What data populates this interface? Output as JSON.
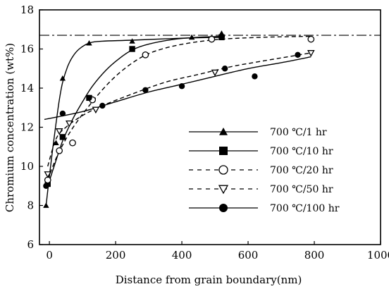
{
  "chart_data": {
    "type": "scatter",
    "xlabel": "Distance  from  grain  boundary(nm)",
    "ylabel": "Chromium  concentration (wt%)",
    "xlim": [
      -30,
      1000
    ],
    "ylim": [
      6,
      18
    ],
    "xticks": [
      "0",
      "200",
      "400",
      "600",
      "800",
      "1000"
    ],
    "yticks": [
      "6",
      "8",
      "10",
      "12",
      "14",
      "16",
      "18"
    ],
    "bulk_level": 16.7,
    "legend_position": "lower-right",
    "grid": false,
    "series": [
      {
        "name": "700 ℃/1 hr",
        "marker": "triangle",
        "line": "solid",
        "points": [
          [
            -10,
            8.0
          ],
          [
            20,
            11.2
          ],
          [
            40,
            14.5
          ],
          [
            120,
            16.3
          ],
          [
            250,
            16.4
          ],
          [
            430,
            16.6
          ],
          [
            520,
            16.8
          ]
        ],
        "curve": [
          [
            -10,
            8.0
          ],
          [
            0,
            9.5
          ],
          [
            10,
            10.9
          ],
          [
            20,
            12.2
          ],
          [
            30,
            13.4
          ],
          [
            40,
            14.3
          ],
          [
            55,
            15.1
          ],
          [
            70,
            15.6
          ],
          [
            90,
            16.0
          ],
          [
            120,
            16.3
          ],
          [
            160,
            16.4
          ],
          [
            250,
            16.45
          ],
          [
            400,
            16.55
          ],
          [
            530,
            16.6
          ]
        ]
      },
      {
        "name": "700 ℃/10 hr",
        "marker": "square",
        "line": "solid",
        "points": [
          [
            -5,
            9.1
          ],
          [
            40,
            11.5
          ],
          [
            120,
            13.5
          ],
          [
            250,
            16.0
          ],
          [
            520,
            16.6
          ]
        ],
        "curve": [
          [
            -5,
            9.0
          ],
          [
            20,
            10.3
          ],
          [
            40,
            11.3
          ],
          [
            70,
            12.4
          ],
          [
            100,
            13.3
          ],
          [
            130,
            14.1
          ],
          [
            170,
            14.9
          ],
          [
            210,
            15.5
          ],
          [
            250,
            15.95
          ],
          [
            300,
            16.25
          ],
          [
            380,
            16.5
          ],
          [
            450,
            16.6
          ],
          [
            530,
            16.65
          ]
        ]
      },
      {
        "name": "700 ℃/20 hr",
        "marker": "circle-open",
        "line": "dashed",
        "points": [
          [
            -5,
            9.3
          ],
          [
            30,
            10.8
          ],
          [
            70,
            11.2
          ],
          [
            130,
            13.4
          ],
          [
            290,
            15.7
          ],
          [
            490,
            16.5
          ],
          [
            790,
            16.5
          ]
        ],
        "curve": [
          [
            -5,
            9.3
          ],
          [
            20,
            10.4
          ],
          [
            50,
            11.4
          ],
          [
            80,
            12.2
          ],
          [
            120,
            13.1
          ],
          [
            170,
            14.1
          ],
          [
            220,
            14.9
          ],
          [
            280,
            15.6
          ],
          [
            340,
            16.0
          ],
          [
            420,
            16.3
          ],
          [
            520,
            16.5
          ],
          [
            650,
            16.6
          ],
          [
            790,
            16.65
          ]
        ]
      },
      {
        "name": "700 ℃/50 hr",
        "marker": "triangle-down-open",
        "line": "dashed",
        "points": [
          [
            -5,
            9.6
          ],
          [
            30,
            11.8
          ],
          [
            60,
            12.2
          ],
          [
            140,
            12.9
          ],
          [
            500,
            14.8
          ],
          [
            790,
            15.8
          ]
        ],
        "curve": [
          [
            -5,
            10.0
          ],
          [
            20,
            11.4
          ],
          [
            50,
            12.0
          ],
          [
            100,
            12.6
          ],
          [
            160,
            13.1
          ],
          [
            250,
            13.7
          ],
          [
            350,
            14.3
          ],
          [
            450,
            14.7
          ],
          [
            550,
            15.1
          ],
          [
            650,
            15.4
          ],
          [
            790,
            15.8
          ]
        ]
      },
      {
        "name": "700 ℃/100 hr",
        "marker": "circle-filled",
        "line": "solid",
        "points": [
          [
            -10,
            9.0
          ],
          [
            40,
            12.7
          ],
          [
            120,
            13.5
          ],
          [
            160,
            13.1
          ],
          [
            290,
            13.9
          ],
          [
            400,
            14.1
          ],
          [
            530,
            15.0
          ],
          [
            620,
            14.6
          ],
          [
            750,
            15.7
          ]
        ],
        "curve": [
          [
            -15,
            12.4
          ],
          [
            100,
            12.8
          ],
          [
            200,
            13.3
          ],
          [
            300,
            13.8
          ],
          [
            400,
            14.2
          ],
          [
            500,
            14.6
          ],
          [
            600,
            15.0
          ],
          [
            700,
            15.3
          ],
          [
            790,
            15.6
          ]
        ]
      }
    ]
  }
}
